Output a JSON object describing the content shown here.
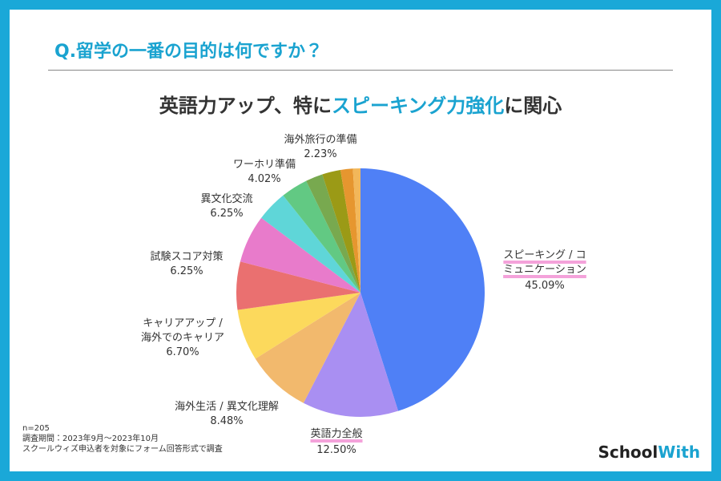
{
  "header": {
    "title": "Q.留学の一番の目的は何ですか？"
  },
  "chart_data": {
    "type": "pie",
    "title": {
      "before": "英語力アップ、特に",
      "highlight": "スピーキング力強化",
      "after": "に関心"
    },
    "categories": [
      "スピーキング / コ\nミュニケーション",
      "英語力全般",
      "海外生活 / 異文化理解",
      "キャリアアップ /\n海外でのキャリア",
      "試験スコア対策",
      "異文化交流",
      "ワーホリ準備",
      null,
      "海外旅行の準備",
      null,
      null,
      null
    ],
    "values": [
      45.09,
      12.5,
      8.48,
      6.7,
      6.25,
      6.25,
      4.02,
      3.5,
      2.23,
      2.4,
      1.6,
      0.98
    ],
    "value_labels": [
      "45.09%",
      "12.50%",
      "8.48%",
      "6.70%",
      "6.25%",
      "6.25%",
      "4.02%",
      null,
      "2.23%",
      null,
      null,
      null
    ],
    "colors": [
      "#4f80f6",
      "#a98ff2",
      "#f2b96d",
      "#fcd95c",
      "#ea7070",
      "#e87bcb",
      "#5fd6d8",
      "#62c983",
      "#78a94f",
      "#9b9a16",
      "#e6962f",
      "#f2b75a"
    ]
  },
  "notes": [
    "n=205",
    "調査期間：2023年9月～2023年10月",
    "スクールウィズ申込者を対象にフォーム回答形式で調査"
  ],
  "brand": {
    "first": "School",
    "second": "With"
  }
}
